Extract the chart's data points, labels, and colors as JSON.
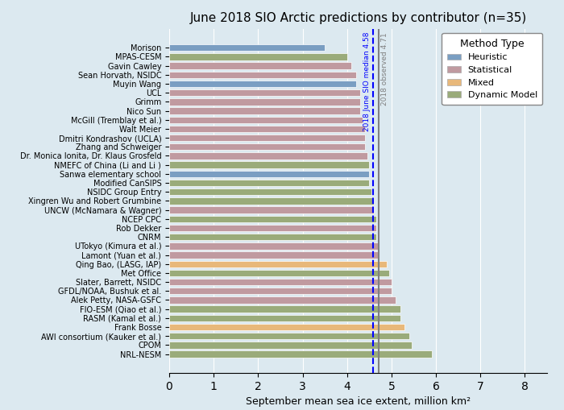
{
  "title": "June 2018 SIO Arctic predictions by contributor (n=35)",
  "xlabel": "September mean sea ice extent, million km²",
  "contributors": [
    "Morison",
    "MPAS-CESM",
    "Gavin Cawley",
    "Sean Horvath, NSIDC",
    "Muyin Wang",
    "UCL",
    "Grimm",
    "Nico Sun",
    "McGill (Tremblay et al.)",
    "Walt Meier",
    "Dmitri Kondrashov (UCLA)",
    "Zhang and Schweiger",
    "Dr. Monica Ionita, Dr. Klaus Grosfeld",
    "NMEFC of China (Li and Li )",
    "Sanwa elementary school",
    "Modified CanSIPS",
    "NSIDC Group Entry",
    "Xingren Wu and Robert Grumbine",
    "UNCW (McNamara & Wagner)",
    "NCEP CPC",
    "Rob Dekker",
    "CNRM",
    "UTokyo (Kimura et al.)",
    "Lamont (Yuan et al.)",
    "Qing Bao, (LASG, IAP)",
    "Met Office",
    "Slater, Barrett, NSIDC",
    "GFDL/NOAA, Bushuk et al.",
    "Alek Petty, NASA-GSFC",
    "FIO-ESM (Qiao et al.)",
    "RASM (Kamal et al.)",
    "Frank Bosse",
    "AWI consortium (Kauker et al.)",
    "CPOM",
    "NRL-NESM"
  ],
  "values": [
    3.5,
    4.0,
    4.1,
    4.2,
    4.2,
    4.3,
    4.3,
    4.3,
    4.35,
    4.4,
    4.4,
    4.4,
    4.45,
    4.5,
    4.5,
    4.5,
    4.55,
    4.6,
    4.6,
    4.65,
    4.65,
    4.65,
    4.7,
    4.7,
    4.9,
    4.95,
    5.0,
    5.0,
    5.1,
    5.2,
    5.2,
    5.3,
    5.4,
    5.45,
    5.9
  ],
  "method_types": [
    "Heuristic",
    "Dynamic Model",
    "Statistical",
    "Statistical",
    "Heuristic",
    "Statistical",
    "Statistical",
    "Statistical",
    "Statistical",
    "Statistical",
    "Statistical",
    "Statistical",
    "Statistical",
    "Dynamic Model",
    "Heuristic",
    "Dynamic Model",
    "Dynamic Model",
    "Dynamic Model",
    "Statistical",
    "Dynamic Model",
    "Statistical",
    "Dynamic Model",
    "Statistical",
    "Statistical",
    "Mixed",
    "Dynamic Model",
    "Statistical",
    "Statistical",
    "Statistical",
    "Dynamic Model",
    "Dynamic Model",
    "Mixed",
    "Dynamic Model",
    "Dynamic Model",
    "Dynamic Model"
  ],
  "method_colors": {
    "Heuristic": "#7a9ec2",
    "Statistical": "#c09aa0",
    "Mixed": "#e8b87a",
    "Dynamic Model": "#9aab7a"
  },
  "observed_line": 4.71,
  "median_line": 4.58,
  "observed_label": "2018 observed 4.71",
  "median_label": "2018 June SIO median 4.58",
  "xlim": [
    0,
    8.5
  ],
  "background_color": "#dce9f0",
  "legend_title": "Method Type",
  "bar_height": 0.75
}
